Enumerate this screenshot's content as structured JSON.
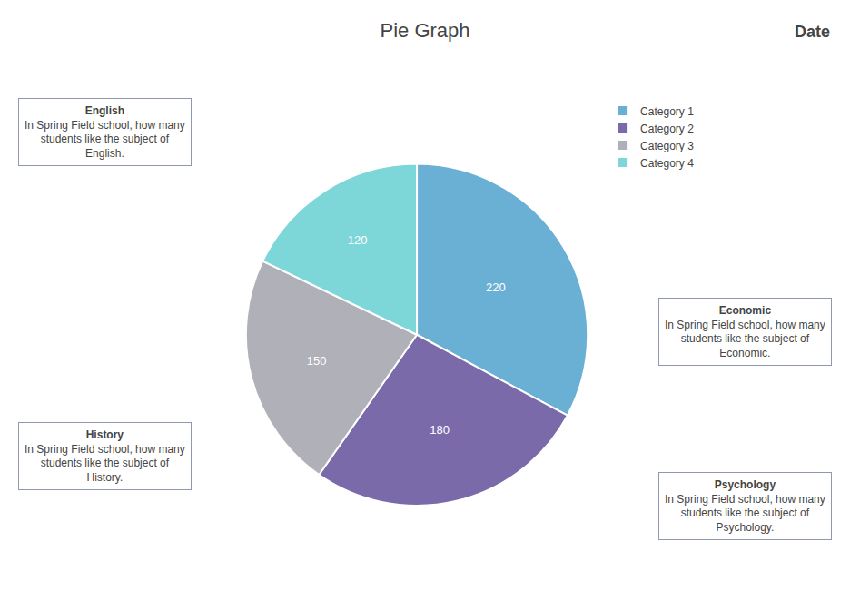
{
  "chart_data": {
    "type": "pie",
    "title": "Pie Graph",
    "subtitle": "Date",
    "categories": [
      "Category 1",
      "Category 2",
      "Category 3",
      "Category 4"
    ],
    "values": [
      220,
      180,
      150,
      120
    ],
    "colors": [
      "#6ab0d4",
      "#7b6aaa",
      "#b0b0b8",
      "#7dd6d8"
    ],
    "data_labels": true,
    "legend": "right",
    "annotations": [
      {
        "subject": "English",
        "text": "In Spring Field school, how many\nstudents like the subject of\nEnglish."
      },
      {
        "subject": "Economic",
        "text": "In Spring Field school, how many\nstudents like the subject of\nEconomic."
      },
      {
        "subject": "History",
        "text": "In Spring Field school, how many\nstudents like the subject of\nHistory."
      },
      {
        "subject": "Psychology",
        "text": "In Spring Field school, how many\nstudents like the subject of\nPsychology."
      }
    ]
  }
}
